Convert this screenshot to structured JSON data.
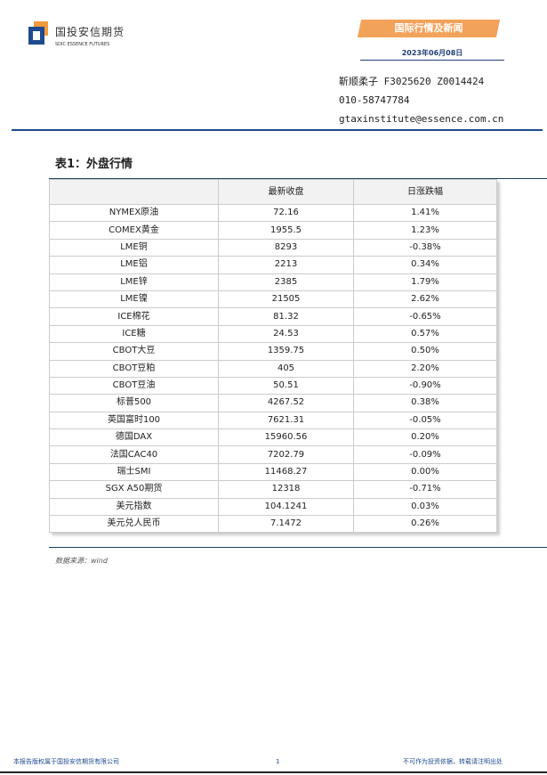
{
  "header": {
    "logo_cn": "国投安信期货",
    "logo_en": "SDIC ESSENCE FUTURES",
    "banner": "国际行情及新闻",
    "date": "2023年06月08日",
    "author": "靳顺柔子 F3025620 Z0014424",
    "phone": "010-58747784",
    "email": "gtaxinstitute@essence.com.cn"
  },
  "table": {
    "title": "表1：外盘行情",
    "columns": [
      "",
      "最新收盘",
      "日涨跌幅"
    ],
    "rows": [
      [
        "NYMEX原油",
        "72.16",
        "1.41%"
      ],
      [
        "COMEX黄金",
        "1955.5",
        "1.23%"
      ],
      [
        "LME铜",
        "8293",
        "-0.38%"
      ],
      [
        "LME铝",
        "2213",
        "0.34%"
      ],
      [
        "LME锌",
        "2385",
        "1.79%"
      ],
      [
        "LME镍",
        "21505",
        "2.62%"
      ],
      [
        "ICE棉花",
        "81.32",
        "-0.65%"
      ],
      [
        "ICE糖",
        "24.53",
        "0.57%"
      ],
      [
        "CBOT大豆",
        "1359.75",
        "0.50%"
      ],
      [
        "CBOT豆粕",
        "405",
        "2.20%"
      ],
      [
        "CBOT豆油",
        "50.51",
        "-0.90%"
      ],
      [
        "标普500",
        "4267.52",
        "0.38%"
      ],
      [
        "英国富时100",
        "7621.31",
        "-0.05%"
      ],
      [
        "德国DAX",
        "15960.56",
        "0.20%"
      ],
      [
        "法国CAC40",
        "7202.79",
        "-0.09%"
      ],
      [
        "瑞士SMI",
        "11468.27",
        "0.00%"
      ],
      [
        "SGX A50期货",
        "12318",
        "-0.71%"
      ],
      [
        "美元指数",
        "104.1241",
        "0.03%"
      ],
      [
        "美元兑人民币",
        "7.1472",
        "0.26%"
      ]
    ],
    "source": "数据来源：wind"
  },
  "footer": {
    "left": "本报告版权属于国投安信期货有限公司",
    "page": "1",
    "right": "不可作为投资依据，转载请注明出处"
  }
}
